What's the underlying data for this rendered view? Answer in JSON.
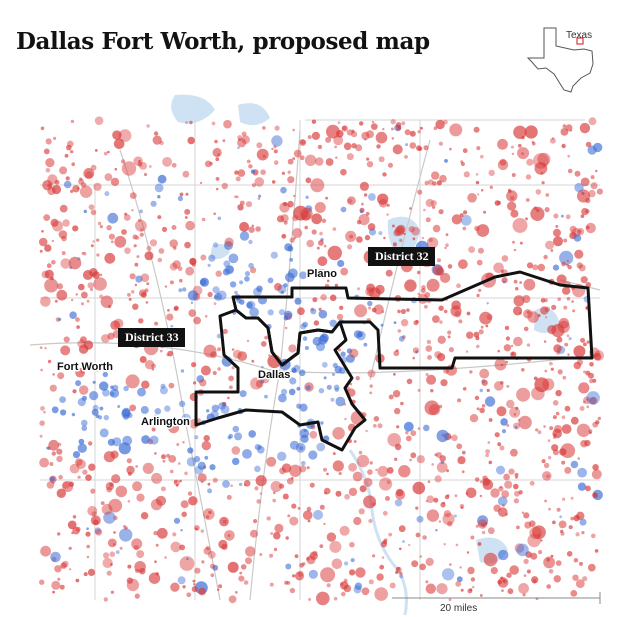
{
  "title": "Dallas Fort Worth, proposed map",
  "inset": {
    "label": "Texas"
  },
  "cities": [
    {
      "name": "Plano"
    },
    {
      "name": "Fort Worth"
    },
    {
      "name": "Dallas"
    },
    {
      "name": "Arlington"
    }
  ],
  "districts": [
    {
      "label": "District 32"
    },
    {
      "label": "District 33"
    }
  ],
  "scale": {
    "label": "20 miles"
  },
  "colors": {
    "republican_red": "#d93a3a",
    "democrat_blue": "#3f6fd6",
    "district_outline": "#111111",
    "water": "#cfe2f3",
    "road": "#c9c9c9"
  }
}
